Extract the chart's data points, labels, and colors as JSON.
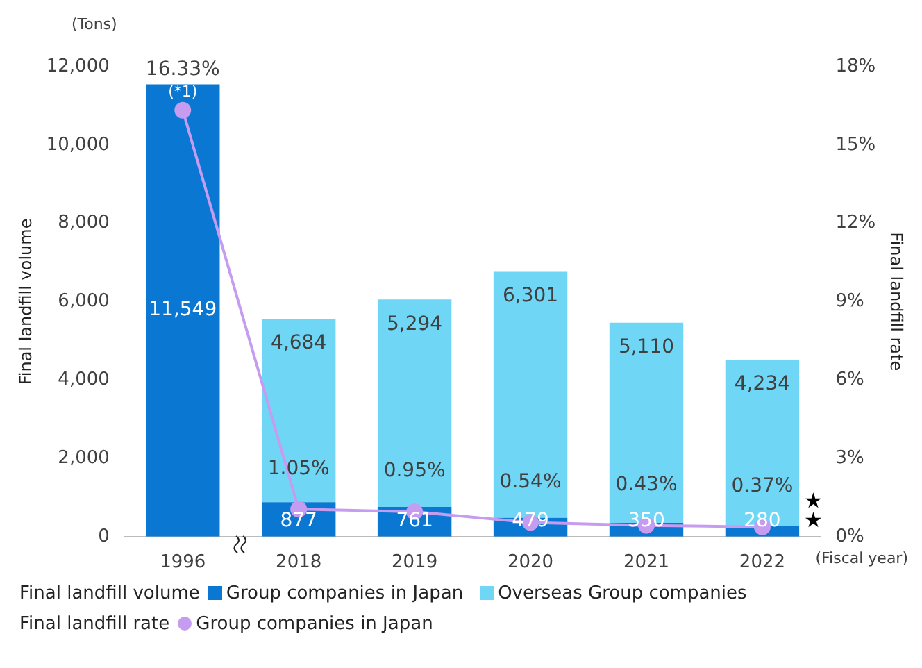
{
  "chart_data": {
    "type": "bar",
    "stacked": true,
    "legend": "bottom",
    "marker": "circle",
    "categories": [
      "1996",
      "2018",
      "2019",
      "2020",
      "2021",
      "2022"
    ],
    "ylabel": "Final landfill volume",
    "y2label": "Final landfill rate",
    "ylim": [
      0,
      12000
    ],
    "yticks": [
      0,
      {
        "value": 2000,
        "label": "2,000"
      },
      {
        "value": 4000,
        "label": "4,000"
      },
      {
        "value": 6000,
        "label": "6,000"
      },
      {
        "value": 8000,
        "label": "8,000"
      },
      {
        "value": 10000,
        "label": "10,000"
      },
      {
        "value": 12000,
        "label": "12,000"
      }
    ],
    "y2lim": [
      0,
      18
    ],
    "y2ticks": [
      {
        "value": 0,
        "label": "0%"
      },
      {
        "value": 3,
        "label": "3%"
      },
      {
        "value": 6,
        "label": "6%"
      },
      {
        "value": 9,
        "label": "9%"
      },
      {
        "value": 12,
        "label": "12%"
      },
      {
        "value": 15,
        "label": "15%"
      },
      {
        "value": 18,
        "label": "18%"
      }
    ],
    "series": [
      {
        "name": "Group companies in Japan",
        "color": "#0a78d2",
        "values": [
          11549,
          877,
          761,
          479,
          350,
          280
        ],
        "value_labels": [
          "11,549",
          "877",
          "761",
          "479",
          "350",
          "280"
        ]
      },
      {
        "name": "Overseas Group companies",
        "color": "#6fd6f6",
        "values": [
          null,
          4684,
          5294,
          6301,
          5110,
          4234
        ],
        "value_labels": [
          null,
          "4,684",
          "5,294",
          "6,301",
          "5,110",
          "4,234"
        ]
      },
      {
        "name": "Group companies in Japan",
        "type": "line",
        "axis": "y2",
        "color": "#c59cf0",
        "values": [
          16.33,
          1.05,
          0.95,
          0.54,
          0.43,
          0.37
        ],
        "value_labels": [
          "16.33%",
          "1.05%",
          "0.95%",
          "0.54%",
          "0.43%",
          "0.37%"
        ]
      }
    ],
    "annotations": [
      "(*1)",
      "★",
      "★",
      "(Tons)",
      "(Fiscal year)"
    ]
  }
}
